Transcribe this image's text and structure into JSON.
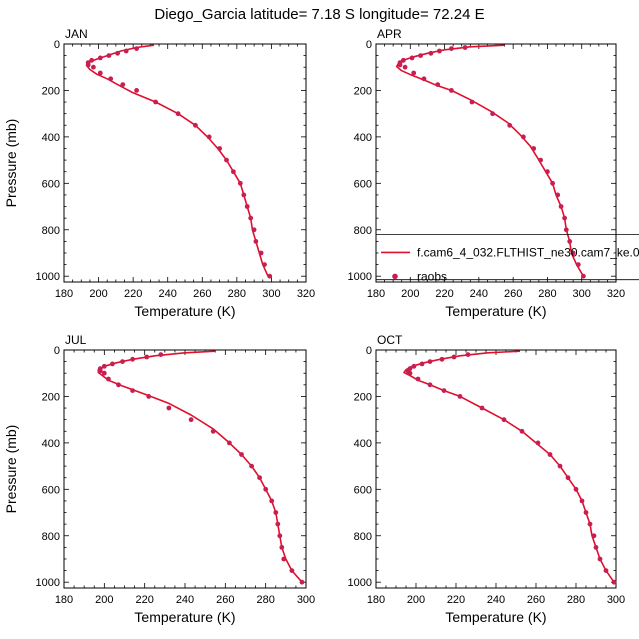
{
  "figure": {
    "title": "Diego_Garcia  latitude= 7.18 S longitude= 72.24 E"
  },
  "chart_data": [
    {
      "type": "line",
      "panel": "JAN",
      "title": "JAN",
      "xlabel": "Temperature (K)",
      "ylabel": "Pressure (mb)",
      "xlim": [
        180,
        320
      ],
      "ylim": [
        1025,
        0
      ],
      "xticks": [
        180,
        200,
        220,
        240,
        260,
        280,
        300,
        320
      ],
      "yticks": [
        0,
        200,
        400,
        600,
        800,
        1000
      ],
      "show_ylabel": true,
      "series": [
        {
          "name": "f.cam6_4_032.FLTHIST_ne30.cam7_ke.0",
          "kind": "line",
          "color": "#e0102a",
          "points": [
            [
              232,
              5
            ],
            [
              222,
              15
            ],
            [
              213,
              30
            ],
            [
              206,
              48
            ],
            [
              199,
              65
            ],
            [
              194,
              80
            ],
            [
              193,
              92
            ],
            [
              195,
              110
            ],
            [
              199,
              130
            ],
            [
              205,
              150
            ],
            [
              211,
              175
            ],
            [
              220,
              210
            ],
            [
              233,
              250
            ],
            [
              246,
              300
            ],
            [
              256,
              350
            ],
            [
              263,
              400
            ],
            [
              269,
              450
            ],
            [
              274,
              500
            ],
            [
              278,
              550
            ],
            [
              282,
              600
            ],
            [
              284,
              650
            ],
            [
              286,
              700
            ],
            [
              288,
              750
            ],
            [
              289,
              800
            ],
            [
              291,
              850
            ],
            [
              293,
              900
            ],
            [
              295,
              950
            ],
            [
              298,
              1000
            ]
          ]
        },
        {
          "name": "raobs",
          "kind": "markers",
          "color": "#c81e54",
          "points": [
            [
              222,
              20
            ],
            [
              216,
              30
            ],
            [
              211,
              40
            ],
            [
              206,
              50
            ],
            [
              201,
              60
            ],
            [
              196,
              70
            ],
            [
              194,
              80
            ],
            [
              194,
              90
            ],
            [
              197,
              100
            ],
            [
              201,
              125
            ],
            [
              207,
              150
            ],
            [
              214,
              175
            ],
            [
              222,
              200
            ],
            [
              233,
              250
            ],
            [
              246,
              300
            ],
            [
              256,
              350
            ],
            [
              264,
              400
            ],
            [
              270,
              450
            ],
            [
              274,
              500
            ],
            [
              278,
              550
            ],
            [
              282,
              600
            ],
            [
              284,
              650
            ],
            [
              286,
              700
            ],
            [
              288,
              750
            ],
            [
              290,
              800
            ],
            [
              291,
              850
            ],
            [
              294,
              900
            ],
            [
              296,
              950
            ],
            [
              299,
              1000
            ]
          ]
        }
      ]
    },
    {
      "type": "line",
      "panel": "APR",
      "title": "APR",
      "xlabel": "Temperature (K)",
      "ylabel": "",
      "xlim": [
        180,
        320
      ],
      "ylim": [
        1025,
        0
      ],
      "xticks": [
        180,
        200,
        220,
        240,
        260,
        280,
        300,
        320
      ],
      "yticks": [
        0,
        200,
        400,
        600,
        800,
        1000
      ],
      "show_ylabel": false,
      "legend": {
        "placement": "bottom-right",
        "entries": [
          "f.cam6_4_032.FLTHIST_ne30.cam7_ke.0",
          "raobs"
        ]
      },
      "series": [
        {
          "name": "f.cam6_4_032.FLTHIST_ne30.cam7_ke.0",
          "kind": "line",
          "color": "#e0102a",
          "points": [
            [
              255,
              5
            ],
            [
              235,
              12
            ],
            [
              220,
              25
            ],
            [
              210,
              40
            ],
            [
              202,
              55
            ],
            [
              196,
              70
            ],
            [
              193,
              85
            ],
            [
              192,
              97
            ],
            [
              195,
              115
            ],
            [
              201,
              135
            ],
            [
              208,
              155
            ],
            [
              216,
              180
            ],
            [
              224,
              200
            ],
            [
              235,
              240
            ],
            [
              247,
              290
            ],
            [
              257,
              340
            ],
            [
              264,
              390
            ],
            [
              270,
              440
            ],
            [
              275,
              500
            ],
            [
              279,
              550
            ],
            [
              283,
              600
            ],
            [
              285,
              650
            ],
            [
              288,
              700
            ],
            [
              290,
              750
            ],
            [
              291,
              800
            ],
            [
              293,
              850
            ],
            [
              294,
              900
            ],
            [
              297,
              950
            ],
            [
              301,
              1000
            ]
          ]
        },
        {
          "name": "raobs",
          "kind": "markers",
          "color": "#c81e54",
          "points": [
            [
              232,
              15
            ],
            [
              224,
              20
            ],
            [
              217,
              30
            ],
            [
              212,
              40
            ],
            [
              206,
              50
            ],
            [
              201,
              60
            ],
            [
              196,
              70
            ],
            [
              194,
              80
            ],
            [
              194,
              90
            ],
            [
              197,
              100
            ],
            [
              202,
              125
            ],
            [
              208,
              150
            ],
            [
              216,
              175
            ],
            [
              224,
              200
            ],
            [
              236,
              250
            ],
            [
              248,
              300
            ],
            [
              258,
              350
            ],
            [
              266,
              400
            ],
            [
              272,
              450
            ],
            [
              276,
              500
            ],
            [
              280,
              550
            ],
            [
              283,
              600
            ],
            [
              286,
              650
            ],
            [
              288,
              700
            ],
            [
              290,
              750
            ],
            [
              291,
              800
            ],
            [
              293,
              850
            ],
            [
              295,
              900
            ],
            [
              298,
              950
            ],
            [
              301,
              1000
            ]
          ]
        }
      ]
    },
    {
      "type": "line",
      "panel": "JUL",
      "title": "JUL",
      "xlabel": "Temperature (K)",
      "ylabel": "Pressure (mb)",
      "xlim": [
        180,
        300
      ],
      "ylim": [
        1025,
        0
      ],
      "xticks": [
        180,
        200,
        220,
        240,
        260,
        280,
        300
      ],
      "yticks": [
        0,
        200,
        400,
        600,
        800,
        1000
      ],
      "show_ylabel": true,
      "series": [
        {
          "name": "f.cam6_4_032.FLTHIST_ne30.cam7_ke.0",
          "kind": "line",
          "color": "#e0102a",
          "points": [
            [
              255,
              5
            ],
            [
              240,
              12
            ],
            [
              225,
              25
            ],
            [
              214,
              40
            ],
            [
              206,
              55
            ],
            [
              200,
              70
            ],
            [
              197,
              85
            ],
            [
              197,
              97
            ],
            [
              199,
              110
            ],
            [
              202,
              130
            ],
            [
              209,
              155
            ],
            [
              220,
              190
            ],
            [
              232,
              230
            ],
            [
              243,
              280
            ],
            [
              254,
              340
            ],
            [
              262,
              400
            ],
            [
              268,
              450
            ],
            [
              273,
              500
            ],
            [
              277,
              550
            ],
            [
              280,
              600
            ],
            [
              283,
              650
            ],
            [
              285,
              700
            ],
            [
              286,
              750
            ],
            [
              287,
              800
            ],
            [
              288,
              850
            ],
            [
              290,
              900
            ],
            [
              293,
              950
            ],
            [
              298,
              1000
            ]
          ]
        },
        {
          "name": "raobs",
          "kind": "markers",
          "color": "#c81e54",
          "points": [
            [
              228,
              20
            ],
            [
              221,
              30
            ],
            [
              214,
              40
            ],
            [
              209,
              50
            ],
            [
              204,
              60
            ],
            [
              200,
              70
            ],
            [
              198,
              80
            ],
            [
              198,
              90
            ],
            [
              200,
              100
            ],
            [
              202,
              125
            ],
            [
              207,
              150
            ],
            [
              214,
              175
            ],
            [
              222,
              200
            ],
            [
              232,
              250
            ],
            [
              243,
              300
            ],
            [
              254,
              350
            ],
            [
              262,
              400
            ],
            [
              268,
              450
            ],
            [
              273,
              500
            ],
            [
              277,
              550
            ],
            [
              280,
              600
            ],
            [
              283,
              650
            ],
            [
              285,
              700
            ],
            [
              286,
              750
            ],
            [
              287,
              800
            ],
            [
              288,
              850
            ],
            [
              289,
              900
            ],
            [
              293,
              950
            ],
            [
              298,
              1000
            ]
          ]
        }
      ]
    },
    {
      "type": "line",
      "panel": "OCT",
      "title": "OCT",
      "xlabel": "Temperature (K)",
      "ylabel": "",
      "xlim": [
        180,
        300
      ],
      "ylim": [
        1025,
        0
      ],
      "xticks": [
        180,
        200,
        220,
        240,
        260,
        280,
        300
      ],
      "yticks": [
        0,
        200,
        400,
        600,
        800,
        1000
      ],
      "show_ylabel": false,
      "series": [
        {
          "name": "f.cam6_4_032.FLTHIST_ne30.cam7_ke.0",
          "kind": "line",
          "color": "#e0102a",
          "points": [
            [
              252,
              5
            ],
            [
              236,
              12
            ],
            [
              222,
              25
            ],
            [
              212,
              40
            ],
            [
              204,
              55
            ],
            [
              198,
              70
            ],
            [
              195,
              85
            ],
            [
              194,
              97
            ],
            [
              197,
              110
            ],
            [
              201,
              130
            ],
            [
              207,
              150
            ],
            [
              214,
              175
            ],
            [
              222,
              200
            ],
            [
              233,
              250
            ],
            [
              244,
              300
            ],
            [
              253,
              350
            ],
            [
              260,
              400
            ],
            [
              267,
              450
            ],
            [
              272,
              500
            ],
            [
              276,
              550
            ],
            [
              280,
              600
            ],
            [
              283,
              650
            ],
            [
              285,
              700
            ],
            [
              287,
              750
            ],
            [
              288,
              800
            ],
            [
              290,
              850
            ],
            [
              292,
              900
            ],
            [
              295,
              950
            ],
            [
              299,
              1000
            ]
          ]
        },
        {
          "name": "raobs",
          "kind": "markers",
          "color": "#c81e54",
          "points": [
            [
              226,
              20
            ],
            [
              219,
              30
            ],
            [
              213,
              40
            ],
            [
              207,
              50
            ],
            [
              203,
              60
            ],
            [
              199,
              70
            ],
            [
              197,
              80
            ],
            [
              196,
              90
            ],
            [
              197,
              100
            ],
            [
              201,
              125
            ],
            [
              207,
              150
            ],
            [
              214,
              175
            ],
            [
              222,
              200
            ],
            [
              233,
              250
            ],
            [
              244,
              300
            ],
            [
              253,
              350
            ],
            [
              261,
              400
            ],
            [
              267,
              450
            ],
            [
              272,
              500
            ],
            [
              276,
              550
            ],
            [
              280,
              600
            ],
            [
              283,
              650
            ],
            [
              285,
              700
            ],
            [
              287,
              750
            ],
            [
              289,
              800
            ],
            [
              290,
              850
            ],
            [
              292,
              900
            ],
            [
              295,
              950
            ],
            [
              299,
              1000
            ]
          ]
        }
      ]
    }
  ]
}
